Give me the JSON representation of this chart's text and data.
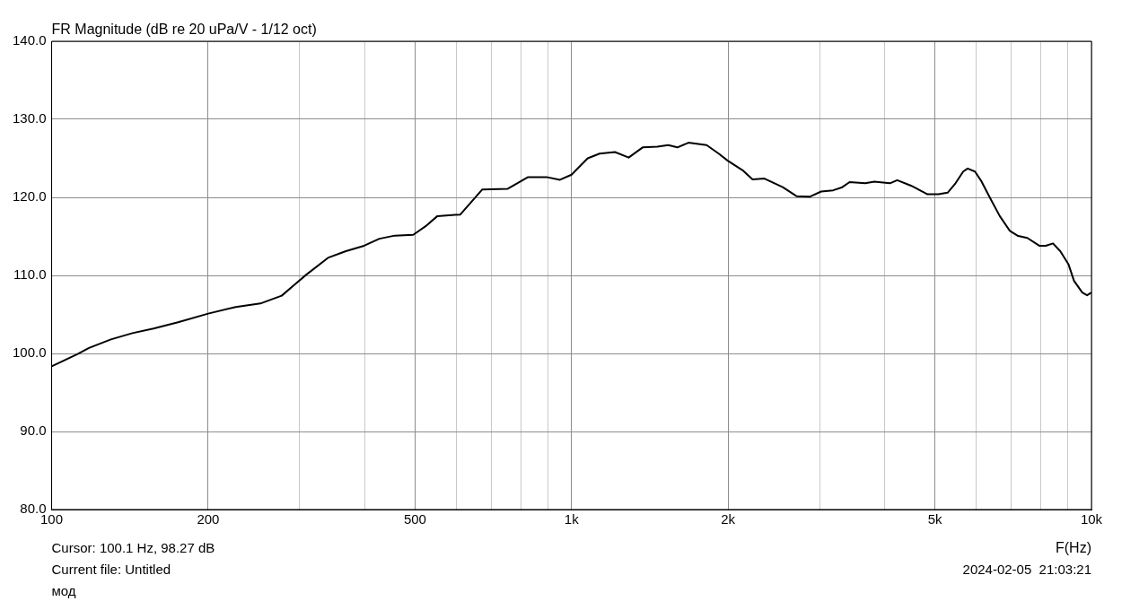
{
  "chart_data": {
    "type": "line",
    "title": "FR Magnitude (dB re 20 uPa/V - 1/12 oct)",
    "xlabel": "F(Hz)",
    "annotations": [
      "Cursor: 100.1 Hz, 98.27 dB",
      "Current file: Untitled",
      "мод",
      "2024-02-05  21:03:21"
    ],
    "log": "x",
    "grid": true,
    "legend": false,
    "marker": "none",
    "line_style": "solid",
    "xlim": [
      100,
      10000
    ],
    "xticks": [
      100,
      {
        "value": 200,
        "label": "200"
      },
      {
        "value": 300,
        "label": null
      },
      {
        "value": 400,
        "label": null
      },
      500,
      {
        "value": 600,
        "label": null
      },
      {
        "value": 700,
        "label": null
      },
      {
        "value": 800,
        "label": null
      },
      {
        "value": 900,
        "label": null
      },
      {
        "value": 1000,
        "label": "1k"
      },
      {
        "value": 2000,
        "label": "2k"
      },
      {
        "value": 3000,
        "label": null
      },
      {
        "value": 4000,
        "label": null
      },
      {
        "value": 5000,
        "label": "5k"
      },
      {
        "value": 6000,
        "label": null
      },
      {
        "value": 7000,
        "label": null
      },
      {
        "value": 8000,
        "label": null
      },
      {
        "value": 9000,
        "label": null
      },
      {
        "value": 10000,
        "label": "10k"
      }
    ],
    "ylim": [
      80,
      140
    ],
    "yticks": [
      {
        "value": 80,
        "label": "80.0"
      },
      {
        "value": 90,
        "label": "90.0"
      },
      {
        "value": 100,
        "label": "100.0"
      },
      {
        "value": 110,
        "label": "110.0"
      },
      {
        "value": 120,
        "label": "120.0"
      },
      {
        "value": 130,
        "label": "130.0"
      },
      {
        "value": 140,
        "label": "140.0"
      }
    ],
    "series": [
      {
        "color": "#000000",
        "x": [
          100,
          112,
          118,
          130,
          143,
          157,
          175,
          200,
          226,
          252,
          277,
          293,
          309,
          340,
          368,
          399,
          427,
          457,
          496,
          524,
          552,
          611,
          673,
          754,
          825,
          895,
          950,
          1000,
          1074,
          1132,
          1212,
          1288,
          1370,
          1462,
          1535,
          1598,
          1678,
          1819,
          1919,
          1997,
          2140,
          2229,
          2350,
          2548,
          2708,
          2877,
          3020,
          3185,
          3317,
          3426,
          3671,
          3823,
          4096,
          4230,
          4497,
          4838,
          5078,
          5289,
          5463,
          5666,
          5780,
          5970,
          6144,
          6397,
          6663,
          6968,
          7228,
          7528,
          7937,
          8166,
          8433,
          8710,
          9036,
          9258,
          9603,
          9810,
          10000
        ],
        "values": [
          98.35,
          99.9,
          100.7,
          101.8,
          102.6,
          103.2,
          104.0,
          105.1,
          105.95,
          106.4,
          107.4,
          108.8,
          110.1,
          112.25,
          113.1,
          113.8,
          114.7,
          115.1,
          115.2,
          116.3,
          117.6,
          117.8,
          121.0,
          121.1,
          122.6,
          122.6,
          122.25,
          122.9,
          125.0,
          125.6,
          125.8,
          125.1,
          126.4,
          126.5,
          126.7,
          126.4,
          127.0,
          126.7,
          125.6,
          124.7,
          123.4,
          122.3,
          122.4,
          121.3,
          120.15,
          120.1,
          120.75,
          120.9,
          121.3,
          121.95,
          121.8,
          122.0,
          121.8,
          122.2,
          121.5,
          120.4,
          120.4,
          120.6,
          121.7,
          123.3,
          123.7,
          123.3,
          122.05,
          119.8,
          117.6,
          115.7,
          115.05,
          114.8,
          113.8,
          113.8,
          114.1,
          113.1,
          111.4,
          109.3,
          107.8,
          107.45,
          107.8
        ]
      }
    ]
  }
}
